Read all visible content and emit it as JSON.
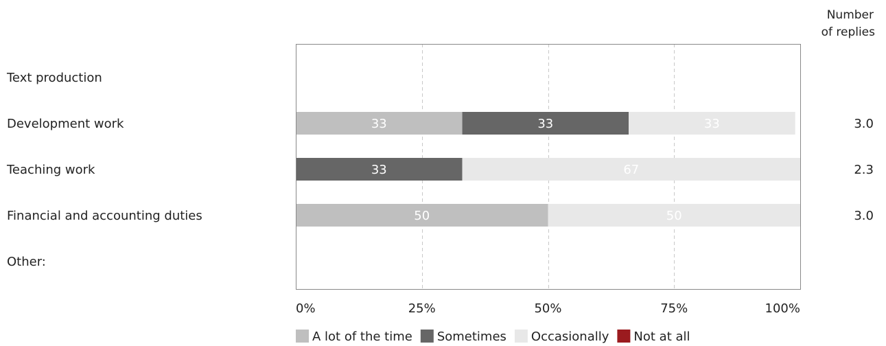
{
  "chart_data": {
    "type": "bar",
    "orientation": "horizontal",
    "stacked": true,
    "percent": true,
    "categories": [
      "Text production",
      "Development work",
      "Teaching work",
      "Financial and accounting duties",
      "Other:"
    ],
    "series": [
      {
        "name": "A lot of the time",
        "color": "#bfbfbf",
        "label_color": "#ffffff",
        "values": [
          0,
          33,
          0,
          50,
          0
        ]
      },
      {
        "name": "Sometimes",
        "color": "#666666",
        "label_color": "#ffffff",
        "values": [
          0,
          33,
          33,
          0,
          0
        ]
      },
      {
        "name": "Occasionally",
        "color": "#e8e8e8",
        "label_color": "#ffffff",
        "values": [
          0,
          33,
          67,
          50,
          0
        ]
      },
      {
        "name": "Not at all",
        "color": "#9b1b1f",
        "label_color": "#ffffff",
        "values": [
          0,
          0,
          0,
          0,
          0
        ]
      }
    ],
    "replies_header": [
      "Number",
      "of replies"
    ],
    "replies": [
      "",
      "3.0",
      "2.3",
      "3.0",
      ""
    ],
    "xlim": [
      0,
      100
    ],
    "x_ticks": [
      0,
      25,
      50,
      75,
      100
    ],
    "x_tick_labels": [
      "0%",
      "25%",
      "50%",
      "75%",
      "100%"
    ],
    "grid": "vertical-dashed",
    "legend_position": "bottom"
  }
}
